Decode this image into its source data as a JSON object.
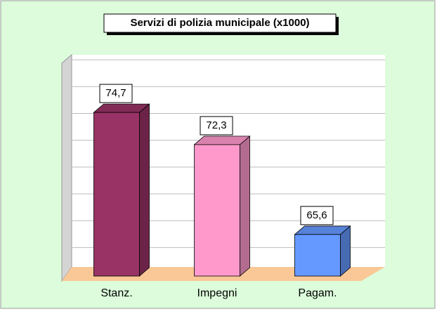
{
  "chart_data": {
    "type": "bar3d",
    "title": "Servizi di polizia municipale (x1000)",
    "categories": [
      "Stanz.",
      "Impegni",
      "Pagam."
    ],
    "values": [
      74.7,
      72.3,
      65.6
    ],
    "value_labels": [
      "74,7",
      "72,3",
      "65,6"
    ],
    "colors": [
      "#993366",
      "#ff99cc",
      "#6699ff"
    ],
    "ylim": [
      62.5,
      79
    ],
    "yticks": [
      64,
      66,
      68,
      70,
      72,
      74,
      76,
      78
    ],
    "grid": true
  }
}
